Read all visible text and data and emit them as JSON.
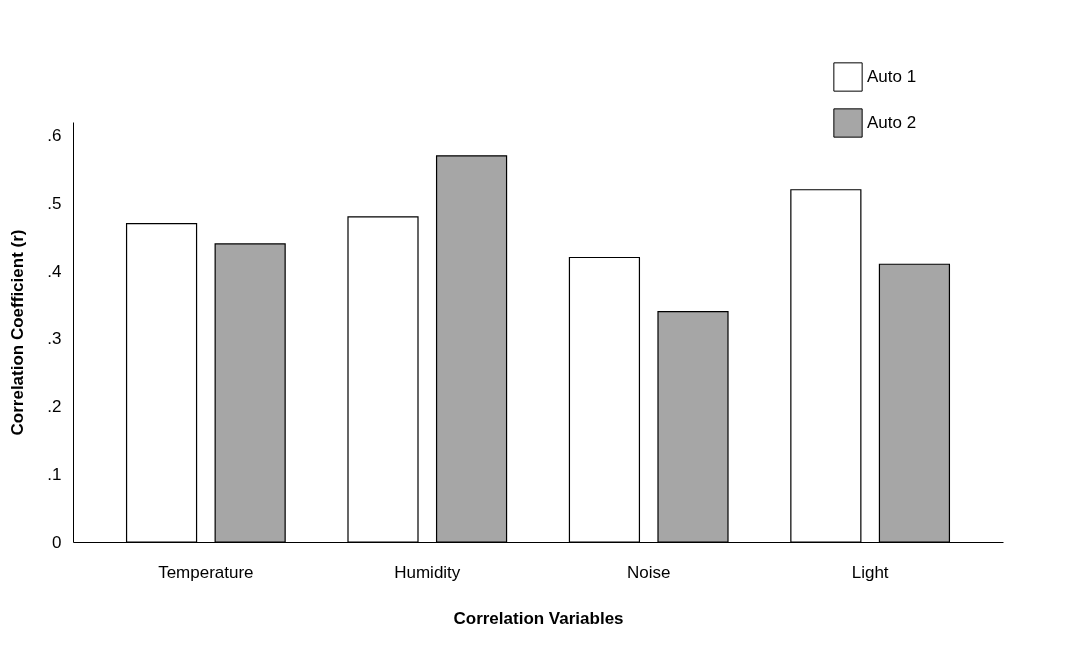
{
  "chart_data": {
    "type": "bar",
    "xlabel": "Correlation Variables",
    "ylabel": "Correlation Coefficient (r)",
    "categories": [
      "Temperature",
      "Humidity",
      "Noise",
      "Light"
    ],
    "series": [
      {
        "name": "Auto 1",
        "color": "#ffffff",
        "values": [
          0.47,
          0.48,
          0.42,
          0.52
        ]
      },
      {
        "name": "Auto 2",
        "color": "#a6a6a6",
        "values": [
          0.44,
          0.57,
          0.34,
          0.41
        ]
      }
    ],
    "ylim": [
      0,
      0.62
    ],
    "yticks": [
      0,
      {
        "value": 0.1,
        "label": ".1"
      },
      {
        "value": 0.2,
        "label": ".2"
      },
      {
        "value": 0.3,
        "label": ".3"
      },
      {
        "value": 0.4,
        "label": ".4"
      },
      {
        "value": 0.5,
        "label": ".5"
      },
      {
        "value": 0.6,
        "label": ".6"
      }
    ],
    "grid": false,
    "legend": "top right"
  }
}
